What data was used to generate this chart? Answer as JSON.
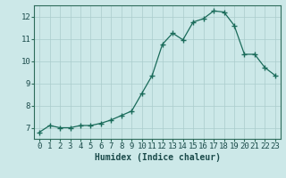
{
  "x": [
    0,
    1,
    2,
    3,
    4,
    5,
    6,
    7,
    8,
    9,
    10,
    11,
    12,
    13,
    14,
    15,
    16,
    17,
    18,
    19,
    20,
    21,
    22,
    23
  ],
  "y": [
    6.8,
    7.1,
    7.0,
    7.0,
    7.1,
    7.1,
    7.2,
    7.35,
    7.55,
    7.75,
    8.55,
    9.35,
    10.75,
    11.25,
    10.95,
    11.75,
    11.9,
    12.25,
    12.2,
    11.6,
    10.3,
    10.3,
    9.7,
    9.35
  ],
  "xlabel": "Humidex (Indice chaleur)",
  "xlim": [
    -0.5,
    23.5
  ],
  "ylim": [
    6.5,
    12.5
  ],
  "yticks": [
    7,
    8,
    9,
    10,
    11,
    12
  ],
  "xticks": [
    0,
    1,
    2,
    3,
    4,
    5,
    6,
    7,
    8,
    9,
    10,
    11,
    12,
    13,
    14,
    15,
    16,
    17,
    18,
    19,
    20,
    21,
    22,
    23
  ],
  "line_color": "#1a6b5a",
  "marker_color": "#1a6b5a",
  "bg_color": "#cce8e8",
  "grid_color": "#aacccc",
  "axis_color": "#2d6b5a",
  "text_color": "#1a4a4a",
  "font_size_label": 7,
  "font_size_tick": 6.5
}
